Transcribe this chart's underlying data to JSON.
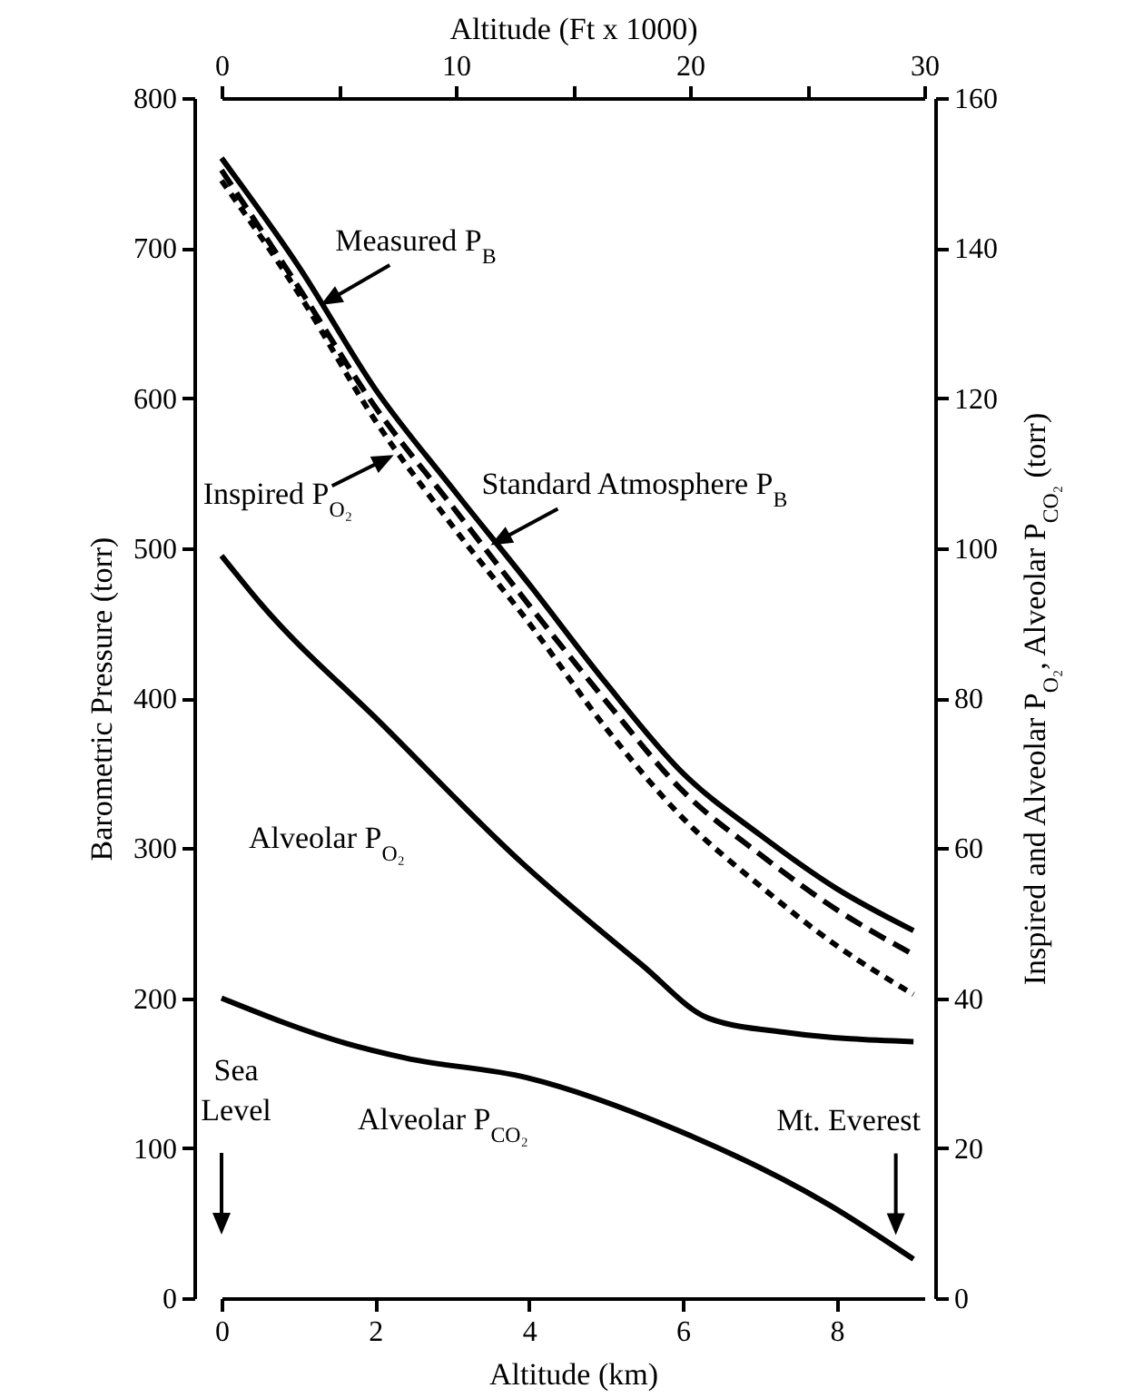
{
  "chart_data": {
    "type": "line",
    "xlabel": "Altitude (km)",
    "x2label": "Altitude (Ft x 1000)",
    "ylabel": "Barometric Pressure (torr)",
    "y2label": "Inspired and Alveolar P$_{O₂}$, Alveolar P$_{CO₂}$ (torr)",
    "xlim": [
      0,
      9.14
    ],
    "xticks": [
      0,
      2,
      4,
      6,
      8
    ],
    "x2lim": [
      0,
      30
    ],
    "x2ticks": [
      0,
      {
        "value": 5,
        "label": null
      },
      10,
      {
        "value": 15,
        "label": null
      },
      20,
      {
        "value": 25,
        "label": null
      },
      30
    ],
    "ylim": [
      0,
      800
    ],
    "yticks": [
      0,
      100,
      200,
      300,
      400,
      500,
      600,
      700,
      800
    ],
    "y2lim": [
      0,
      160
    ],
    "y2ticks": [
      0,
      20,
      40,
      60,
      80,
      100,
      120,
      140,
      160
    ],
    "grid": false,
    "series": [
      {
        "color": "#000000",
        "line_style": "solid",
        "x": [
          0,
          1,
          2,
          3,
          4,
          5,
          6,
          7,
          8,
          9
        ],
        "values": [
          760,
          688,
          606,
          540,
          476,
          410,
          350,
          309,
          273,
          245
        ]
      },
      {
        "color": "#000000",
        "line_style": "dashed",
        "x": [
          0,
          1,
          2,
          3,
          4,
          5,
          6,
          7,
          8,
          9
        ],
        "values": [
          752,
          674,
          594,
          528,
          462,
          398,
          338,
          296,
          259,
          229
        ]
      },
      {
        "color": "#000000",
        "line_style": "dotted",
        "axis": "y2",
        "x": [
          0,
          1,
          2,
          3,
          4,
          5,
          6,
          7,
          8,
          9
        ],
        "values": [
          149,
          134,
          117,
          103,
          90,
          76,
          64,
          55,
          47,
          40.5
        ]
      },
      {
        "color": "#000000",
        "line_style": "solid",
        "axis": "y2",
        "x": [
          0,
          0.5,
          2.08,
          3.89,
          5.46,
          6.34,
          7.36,
          9
        ],
        "values": [
          99,
          92.7,
          76.6,
          58.2,
          44.5,
          37.3,
          35.4,
          34.2
        ]
      },
      {
        "color": "#000000",
        "line_style": "solid",
        "axis": "y2",
        "x": [
          0,
          1.61,
          2.4,
          3.97,
          5.93,
          7.91,
          9
        ],
        "values": [
          40,
          34,
          32,
          29.4,
          22.4,
          12.4,
          5.2
        ]
      }
    ],
    "annotations": [
      {
        "text": "Measured P$_{B}$",
        "x": 1.29,
        "y": 662
      },
      {
        "text": "Standard Atmosphere P$_{B}$",
        "x": 3.5,
        "y": 502
      },
      {
        "text": "Inspired P$_{O₂}$",
        "x": 2.24,
        "y": 562
      },
      "Alveolar P$_{O₂}$",
      "Alveolar P$_{CO₂}$",
      "Sea Level",
      {
        "text": "Mt. Everest",
        "x": 8.77,
        "y": 42
      }
    ]
  }
}
